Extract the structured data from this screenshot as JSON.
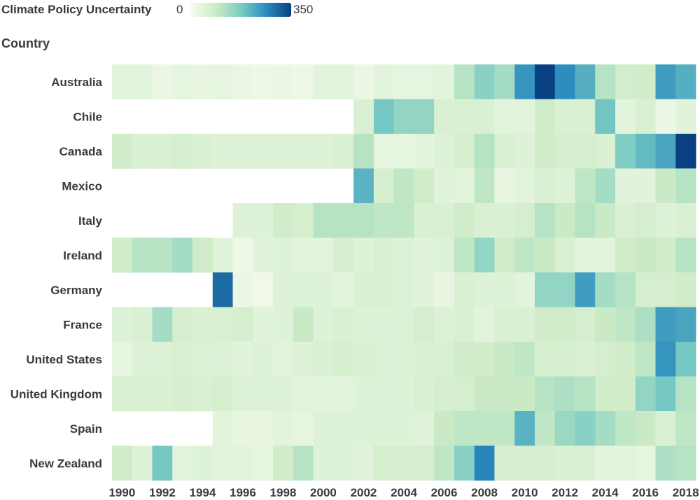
{
  "chart_data": {
    "type": "heatmap",
    "title": "",
    "xlabel": "",
    "ylabel": "Country",
    "legend": {
      "title": "Climate Policy Uncertainty",
      "min_label": "0",
      "max_label": "350",
      "min": 0,
      "max": 350,
      "placement": "top-left",
      "colors": [
        "#f7fcf0",
        "#ccebc5",
        "#7bccc4",
        "#2b8cbe",
        "#084081"
      ]
    },
    "x": [
      1990,
      1991,
      1992,
      1993,
      1994,
      1995,
      1996,
      1997,
      1998,
      1999,
      2000,
      2001,
      2002,
      2003,
      2004,
      2005,
      2006,
      2007,
      2008,
      2009,
      2010,
      2011,
      2012,
      2013,
      2014,
      2015,
      2016,
      2017,
      2018
    ],
    "x_tick_labels": [
      "1990",
      "1992",
      "1994",
      "1996",
      "1998",
      "2000",
      "2002",
      "2004",
      "2006",
      "2008",
      "2010",
      "2012",
      "2014",
      "2016",
      "2018"
    ],
    "rows": [
      "Australia",
      "Chile",
      "Canada",
      "Mexico",
      "Italy",
      "Ireland",
      "Germany",
      "France",
      "United States",
      "United Kingdom",
      "Spain",
      "New Zealand"
    ],
    "grid": false,
    "values": [
      [
        40,
        40,
        25,
        35,
        30,
        35,
        25,
        20,
        25,
        20,
        40,
        40,
        25,
        40,
        35,
        35,
        40,
        110,
        160,
        130,
        250,
        350,
        260,
        215,
        110,
        75,
        80,
        240,
        215
      ],
      [
        null,
        null,
        null,
        null,
        null,
        null,
        null,
        null,
        null,
        null,
        null,
        null,
        60,
        180,
        150,
        150,
        60,
        60,
        60,
        40,
        40,
        80,
        60,
        60,
        185,
        40,
        60,
        25,
        45
      ],
      [
        80,
        60,
        60,
        70,
        60,
        50,
        50,
        50,
        50,
        50,
        50,
        60,
        110,
        35,
        35,
        40,
        50,
        70,
        110,
        60,
        50,
        80,
        70,
        70,
        60,
        170,
        200,
        230,
        350
      ],
      [
        null,
        null,
        null,
        null,
        null,
        null,
        null,
        null,
        null,
        null,
        null,
        null,
        210,
        70,
        100,
        80,
        45,
        40,
        100,
        30,
        40,
        60,
        50,
        100,
        130,
        45,
        45,
        90,
        110
      ],
      [
        null,
        null,
        null,
        null,
        null,
        null,
        50,
        50,
        80,
        70,
        110,
        110,
        110,
        100,
        100,
        60,
        60,
        80,
        60,
        60,
        70,
        110,
        90,
        110,
        90,
        60,
        70,
        50,
        60
      ],
      [
        80,
        110,
        110,
        130,
        80,
        45,
        20,
        45,
        50,
        40,
        40,
        70,
        50,
        60,
        55,
        45,
        50,
        100,
        150,
        80,
        100,
        90,
        60,
        40,
        40,
        80,
        90,
        80,
        110
      ],
      [
        null,
        null,
        null,
        null,
        null,
        300,
        25,
        15,
        50,
        50,
        50,
        40,
        60,
        60,
        55,
        45,
        30,
        60,
        50,
        50,
        40,
        150,
        150,
        240,
        130,
        110,
        70,
        70,
        80
      ],
      [
        50,
        60,
        130,
        70,
        60,
        60,
        70,
        45,
        50,
        90,
        50,
        60,
        55,
        50,
        55,
        70,
        55,
        60,
        40,
        60,
        60,
        80,
        80,
        70,
        90,
        100,
        120,
        240,
        230
      ],
      [
        35,
        50,
        55,
        60,
        55,
        50,
        45,
        50,
        40,
        50,
        60,
        70,
        60,
        55,
        55,
        60,
        60,
        80,
        80,
        90,
        100,
        70,
        70,
        60,
        70,
        80,
        100,
        250,
        180
      ],
      [
        60,
        60,
        60,
        65,
        60,
        70,
        55,
        55,
        50,
        40,
        40,
        40,
        50,
        50,
        50,
        60,
        70,
        70,
        90,
        90,
        90,
        110,
        120,
        110,
        80,
        80,
        150,
        180,
        110
      ],
      [
        null,
        null,
        null,
        null,
        null,
        40,
        30,
        30,
        40,
        35,
        50,
        55,
        50,
        50,
        50,
        45,
        90,
        100,
        100,
        100,
        210,
        100,
        140,
        160,
        130,
        100,
        90,
        60,
        100
      ],
      [
        80,
        50,
        180,
        40,
        50,
        40,
        40,
        35,
        80,
        110,
        50,
        50,
        45,
        70,
        70,
        70,
        100,
        160,
        270,
        70,
        70,
        70,
        60,
        60,
        40,
        40,
        35,
        120,
        110
      ]
    ]
  }
}
